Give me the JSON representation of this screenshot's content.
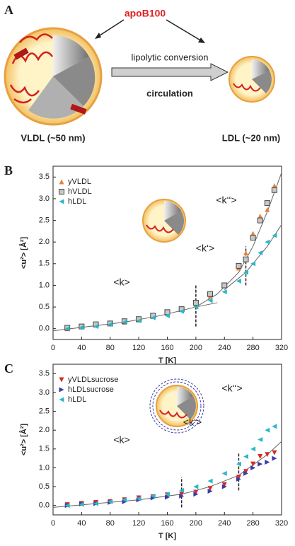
{
  "panel_a": {
    "label": "A",
    "protein": "apoB100",
    "conversion": "lipolytic conversion",
    "site": "circulation",
    "left_particle": "VLDL (~50 nm)",
    "right_particle": "LDL (~20 nm)"
  },
  "chart_data": [
    {
      "type": "scatter",
      "label": "B",
      "xlabel": "T [K]",
      "ylabel": "<u²> [Å²]",
      "xlim": [
        0,
        320
      ],
      "ylim": [
        -0.25,
        3.75
      ],
      "xticks": [
        0,
        40,
        80,
        120,
        160,
        200,
        240,
        280,
        320
      ],
      "yticks": [
        {
          "value": 0,
          "label": "0.0"
        },
        0.5,
        {
          "value": 1,
          "label": "1.0"
        },
        1.5,
        {
          "value": 2,
          "label": "2.0"
        },
        2.5,
        {
          "value": 3,
          "label": "3.0"
        },
        3.5
      ],
      "legend": "upper left",
      "x": [
        20,
        40,
        60,
        80,
        100,
        120,
        140,
        160,
        180,
        200,
        220,
        240,
        260,
        270,
        280,
        290,
        300,
        310
      ],
      "series": [
        {
          "name": "yVLDL",
          "color": "#e8803a",
          "marker": "triangle-up",
          "values": [
            0.0,
            0.05,
            0.08,
            0.12,
            0.15,
            0.2,
            0.28,
            0.35,
            0.45,
            0.55,
            0.75,
            1.0,
            1.4,
            1.75,
            2.2,
            2.6,
            2.75,
            3.3
          ]
        },
        {
          "name": "hVLDL",
          "color": "#c8c8c8",
          "marker": "square",
          "values": [
            0.02,
            0.05,
            0.1,
            0.12,
            0.17,
            0.22,
            0.3,
            0.38,
            0.45,
            0.6,
            0.8,
            1.0,
            1.45,
            1.6,
            2.1,
            2.5,
            2.9,
            3.2
          ]
        },
        {
          "name": "hLDL",
          "color": "#29b7c9",
          "marker": "triangle-left",
          "values": [
            0.0,
            0.03,
            0.05,
            0.1,
            0.15,
            0.18,
            0.25,
            0.3,
            0.4,
            0.5,
            0.65,
            0.85,
            1.1,
            1.3,
            1.5,
            1.75,
            2.0,
            2.15
          ]
        }
      ],
      "fits": [
        {
          "x": [
            0,
            50,
            100,
            150,
            200,
            230
          ],
          "values": [
            -0.05,
            0.05,
            0.15,
            0.3,
            0.5,
            0.6
          ]
        },
        {
          "x": [
            200,
            230,
            260,
            280,
            300,
            320
          ],
          "values": [
            0.5,
            0.8,
            1.3,
            1.9,
            2.7,
            3.6
          ]
        },
        {
          "x": [
            240,
            270,
            300,
            320
          ],
          "values": [
            0.9,
            1.3,
            1.9,
            2.4
          ]
        }
      ],
      "dashed_lines": [
        {
          "x": 200,
          "from": 0.05,
          "to": 1.0
        },
        {
          "x": 270,
          "from": 1.0,
          "to": 1.9
        }
      ],
      "annotations": [
        "<k>",
        "<k‘>",
        "<k‘‘>"
      ]
    },
    {
      "type": "scatter",
      "label": "C",
      "xlabel": "T [K]",
      "ylabel": "<u²> [Å²]",
      "xlim": [
        0,
        320
      ],
      "ylim": [
        -0.25,
        3.75
      ],
      "xticks": [
        0,
        40,
        80,
        120,
        160,
        200,
        240,
        280,
        320
      ],
      "yticks": [
        {
          "value": 0,
          "label": "0.0"
        },
        0.5,
        {
          "value": 1,
          "label": "1.0"
        },
        1.5,
        {
          "value": 2,
          "label": "2.0"
        },
        2.5,
        {
          "value": 3,
          "label": "3.0"
        },
        3.5
      ],
      "legend": "upper left",
      "x": [
        20,
        40,
        60,
        80,
        100,
        120,
        140,
        160,
        180,
        200,
        220,
        240,
        260,
        270,
        280,
        290,
        300,
        310
      ],
      "series": [
        {
          "name": "yVLDLsucrose",
          "color": "#d42a2a",
          "marker": "triangle-down",
          "values": [
            0.02,
            0.05,
            0.08,
            0.1,
            0.15,
            0.2,
            0.23,
            0.28,
            0.3,
            0.35,
            0.45,
            0.55,
            0.75,
            0.9,
            1.1,
            1.3,
            1.35,
            1.4
          ]
        },
        {
          "name": "hLDLsucrose",
          "color": "#3a3aa8",
          "marker": "triangle-right",
          "values": [
            0.0,
            0.04,
            0.05,
            0.08,
            0.1,
            0.15,
            0.2,
            0.22,
            0.25,
            0.3,
            0.38,
            0.5,
            0.7,
            0.85,
            1.0,
            1.1,
            1.15,
            1.25
          ]
        },
        {
          "name": "hLDL",
          "color": "#29b7c9",
          "marker": "triangle-left",
          "values": [
            0.0,
            0.03,
            0.05,
            0.1,
            0.15,
            0.18,
            0.25,
            0.3,
            0.4,
            0.5,
            0.65,
            0.85,
            1.1,
            1.3,
            1.5,
            1.75,
            2.0,
            2.1
          ]
        }
      ],
      "fits": [
        {
          "x": [
            0,
            60,
            120,
            180,
            220,
            260,
            300,
            320
          ],
          "values": [
            -0.05,
            0.05,
            0.15,
            0.3,
            0.5,
            0.8,
            1.35,
            1.7
          ]
        }
      ],
      "dashed_lines": [
        {
          "x": 180,
          "from": -0.05,
          "to": 0.75
        },
        {
          "x": 260,
          "from": 0.4,
          "to": 1.4
        }
      ],
      "annotations": [
        "<k>",
        "<k‘>",
        "<k‘‘>"
      ]
    }
  ]
}
